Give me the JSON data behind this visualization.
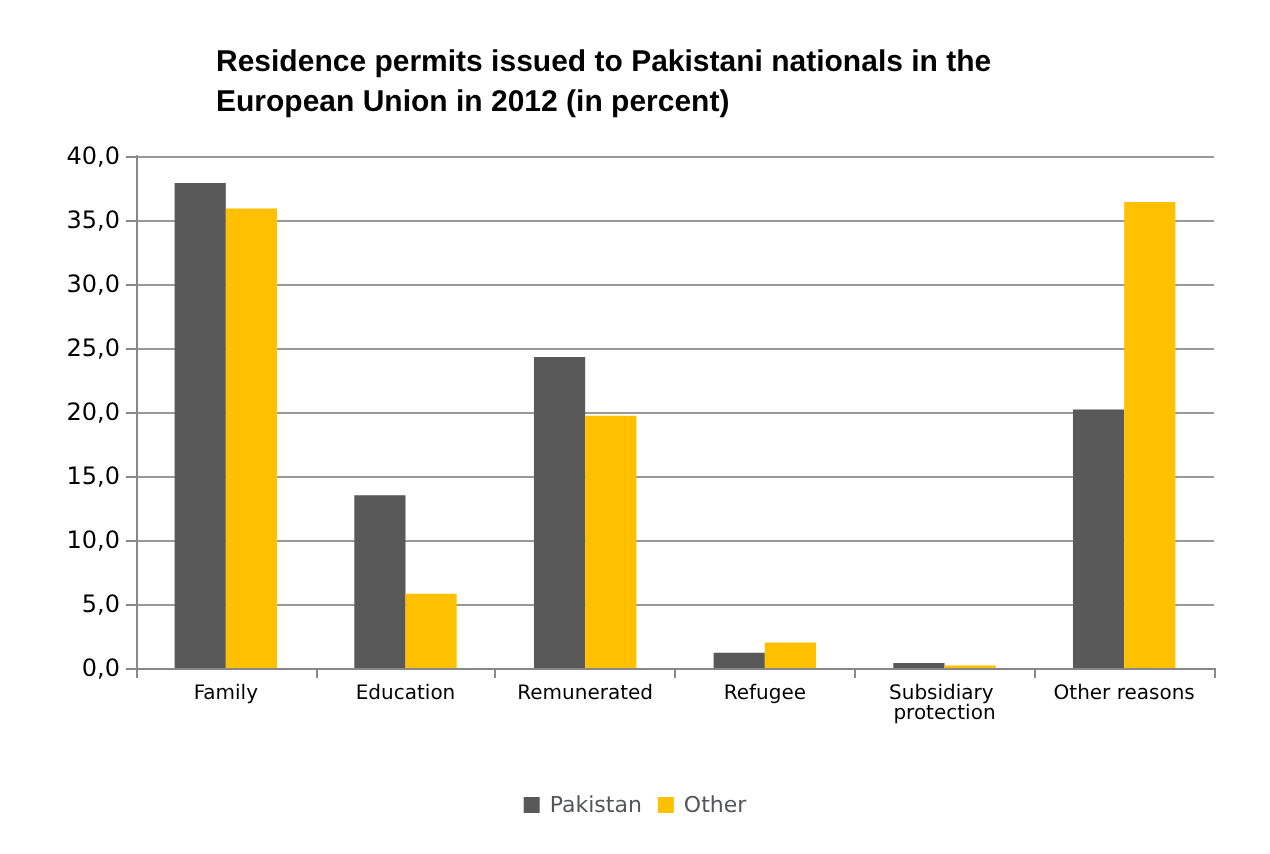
{
  "chart_data": {
    "type": "bar",
    "title": "Residence permits issued to Pakistani nationals in the European Union in 2012 (in percent)",
    "categories": [
      "Family",
      "Education",
      "Remunerated",
      "Refugee",
      "Subsidiary protection",
      "Other reasons"
    ],
    "series": [
      {
        "name": "Pakistan",
        "color": "#595959",
        "values": [
          37.9,
          13.5,
          24.3,
          1.2,
          0.4,
          20.2
        ]
      },
      {
        "name": "Other",
        "color": "#ffc000",
        "values": [
          35.9,
          5.8,
          19.7,
          2.0,
          0.2,
          36.4
        ]
      }
    ],
    "ylim": [
      0,
      40
    ],
    "yticks": [
      {
        "value": 0,
        "label": "0,0"
      },
      {
        "value": 5,
        "label": "5,0"
      },
      {
        "value": 10,
        "label": "10,0"
      },
      {
        "value": 15,
        "label": "15,0"
      },
      {
        "value": 20,
        "label": "20,0"
      },
      {
        "value": 25,
        "label": "25,0"
      },
      {
        "value": 30,
        "label": "30,0"
      },
      {
        "value": 35,
        "label": "35,0"
      },
      {
        "value": 40,
        "label": "40,0"
      }
    ],
    "grid": "y",
    "legend": "bottom"
  }
}
